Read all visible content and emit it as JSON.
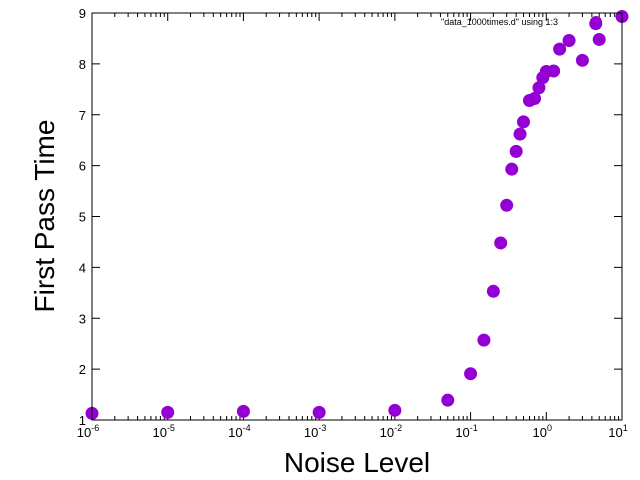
{
  "chart_data": {
    "type": "scatter",
    "title": "",
    "xlabel": "Noise Level",
    "ylabel": "First Pass Time",
    "xscale": "log",
    "xlim": [
      1e-06,
      10
    ],
    "ylim": [
      1,
      9
    ],
    "x_ticks": [
      {
        "base": "10",
        "exp": "-6"
      },
      {
        "base": "10",
        "exp": "-5"
      },
      {
        "base": "10",
        "exp": "-4"
      },
      {
        "base": "10",
        "exp": "-3"
      },
      {
        "base": "10",
        "exp": "-2"
      },
      {
        "base": "10",
        "exp": "-1"
      },
      {
        "base": "10",
        "exp": "0"
      },
      {
        "base": "10",
        "exp": "1"
      }
    ],
    "y_ticks": [
      "1",
      "2",
      "3",
      "4",
      "5",
      "6",
      "7",
      "8",
      "9"
    ],
    "grid": false,
    "legend_position": "top-right",
    "series": [
      {
        "name": "\"data_1000times.d\" using 1:3",
        "color": "#9400d3",
        "marker": "circle",
        "points": [
          {
            "x": 1e-06,
            "y": 1.13
          },
          {
            "x": 1e-05,
            "y": 1.15
          },
          {
            "x": 0.0001,
            "y": 1.17
          },
          {
            "x": 0.001,
            "y": 1.15
          },
          {
            "x": 0.01,
            "y": 1.19
          },
          {
            "x": 0.05,
            "y": 1.39
          },
          {
            "x": 0.1,
            "y": 1.91
          },
          {
            "x": 0.15,
            "y": 2.57
          },
          {
            "x": 0.2,
            "y": 3.53
          },
          {
            "x": 0.25,
            "y": 4.48
          },
          {
            "x": 0.3,
            "y": 5.22
          },
          {
            "x": 0.35,
            "y": 5.93
          },
          {
            "x": 0.4,
            "y": 6.28
          },
          {
            "x": 0.45,
            "y": 6.62
          },
          {
            "x": 0.5,
            "y": 6.86
          },
          {
            "x": 0.6,
            "y": 7.28
          },
          {
            "x": 0.7,
            "y": 7.32
          },
          {
            "x": 0.8,
            "y": 7.53
          },
          {
            "x": 0.9,
            "y": 7.73
          },
          {
            "x": 1.0,
            "y": 7.85
          },
          {
            "x": 1.25,
            "y": 7.86
          },
          {
            "x": 1.5,
            "y": 8.29
          },
          {
            "x": 2.0,
            "y": 8.46
          },
          {
            "x": 3.0,
            "y": 8.07
          },
          {
            "x": 4.5,
            "y": 8.79
          },
          {
            "x": 5.0,
            "y": 8.48
          },
          {
            "x": 10.0,
            "y": 8.93
          }
        ]
      }
    ]
  }
}
